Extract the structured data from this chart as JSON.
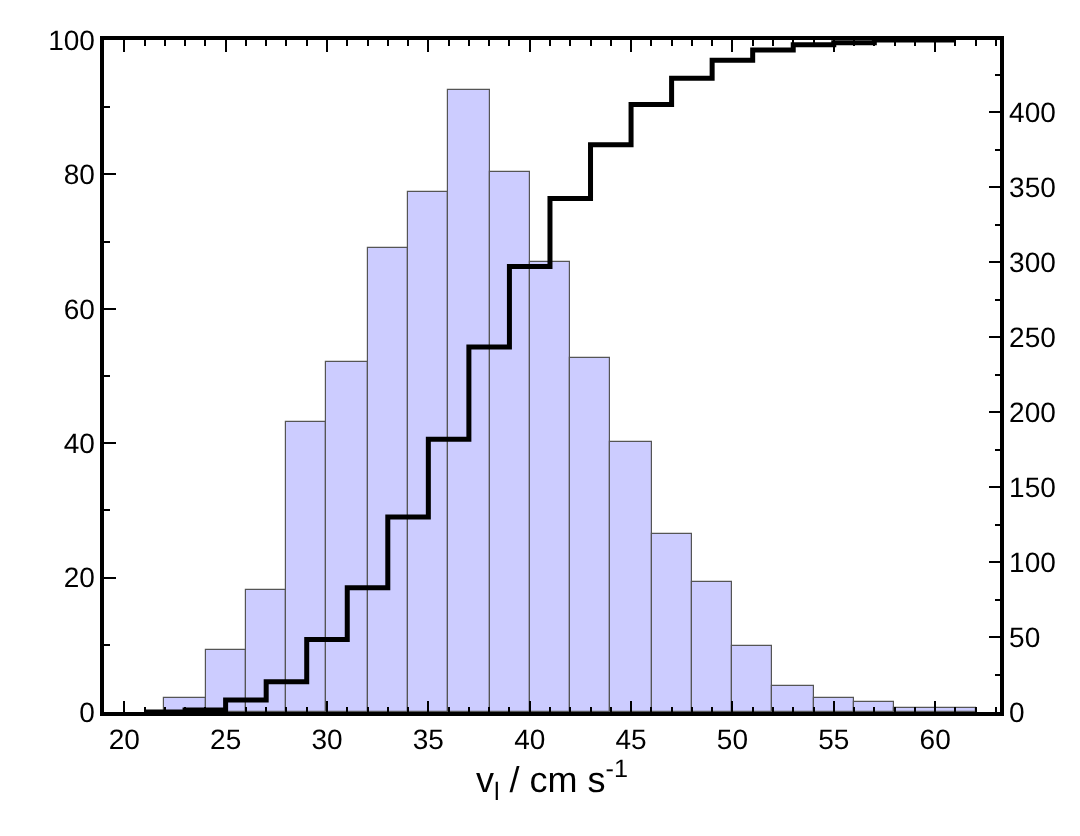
{
  "chart_data": {
    "type": "histogram",
    "xlabel": "v$_{l}$ / cm s$^{-1}$",
    "xlim": [
      19,
      63.2
    ],
    "xticks": [
      20,
      25,
      30,
      35,
      40,
      45,
      50,
      55,
      60
    ],
    "ylim": [
      0,
      100
    ],
    "yticks": [
      0,
      20,
      40,
      60,
      80,
      100
    ],
    "y2lim": [
      0,
      448
    ],
    "y2ticks": [
      0,
      50,
      100,
      150,
      200,
      250,
      300,
      350,
      400
    ],
    "series": [
      {
        "axis": "y2",
        "color": "#ccccff",
        "bins": [
          22,
          24,
          26,
          28,
          30,
          32,
          34,
          36,
          38,
          40,
          42,
          44,
          46,
          48,
          50,
          52,
          54,
          56,
          58,
          60,
          62
        ],
        "values": [
          10,
          42,
          82,
          193,
          234,
          310,
          347,
          415,
          360,
          300,
          236,
          180,
          119,
          87,
          44,
          17,
          10,
          7,
          3,
          3
        ]
      },
      {
        "type": "step",
        "color": "#000000",
        "x": [
          21,
          23,
          25,
          27,
          29,
          31,
          33,
          35,
          37,
          39,
          41,
          43,
          45,
          47,
          49,
          51,
          53,
          55,
          57,
          59,
          61
        ],
        "values": [
          0,
          0.3,
          1.8,
          4.5,
          10.8,
          18.5,
          29,
          40.6,
          54.3,
          66.3,
          76.4,
          84.4,
          90.4,
          94.3,
          97,
          98.5,
          99.3,
          99.6,
          100,
          100,
          100
        ]
      }
    ]
  }
}
